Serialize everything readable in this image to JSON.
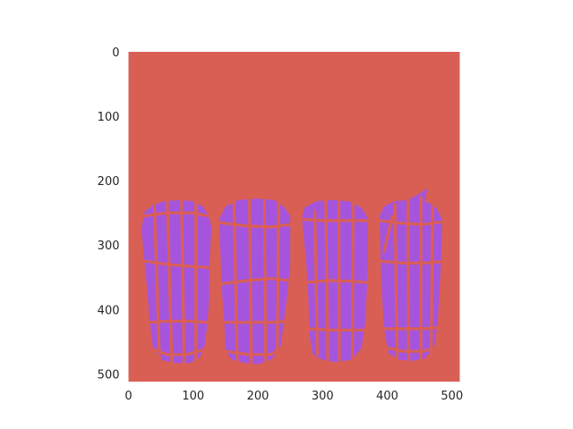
{
  "chart_data": {
    "type": "heatmap",
    "title": "",
    "xlabel": "",
    "ylabel": "",
    "xlim": [
      0,
      512
    ],
    "ylim": [
      512,
      0
    ],
    "x_ticks": [
      0,
      100,
      200,
      300,
      400,
      500
    ],
    "y_ticks": [
      0,
      100,
      200,
      300,
      400,
      500
    ],
    "x_tick_labels": [
      "0",
      "100",
      "200",
      "300",
      "400",
      "500"
    ],
    "y_tick_labels": [
      "0",
      "100",
      "200",
      "300",
      "400",
      "500"
    ],
    "grid": false,
    "colors": {
      "background": "#d95f55",
      "mask": "#a555dd",
      "seam": "#d95f55"
    },
    "regions": [
      {
        "label": "mask",
        "outline": [
          [
            20,
            275
          ],
          [
            25,
            248
          ],
          [
            38,
            238
          ],
          [
            55,
            232
          ],
          [
            80,
            230
          ],
          [
            100,
            232
          ],
          [
            115,
            240
          ],
          [
            125,
            255
          ],
          [
            128,
            275
          ],
          [
            125,
            330
          ],
          [
            125,
            380
          ],
          [
            122,
            420
          ],
          [
            118,
            455
          ],
          [
            110,
            475
          ],
          [
            95,
            483
          ],
          [
            70,
            483
          ],
          [
            50,
            478
          ],
          [
            38,
            460
          ],
          [
            33,
            420
          ],
          [
            30,
            380
          ],
          [
            25,
            330
          ]
        ],
        "seams": [
          [
            [
              22,
              255
            ],
            [
              60,
              250
            ],
            [
              100,
              250
            ],
            [
              125,
              255
            ]
          ],
          [
            [
              25,
              325
            ],
            [
              60,
              330
            ],
            [
              95,
              333
            ],
            [
              125,
              335
            ]
          ],
          [
            [
              33,
              420
            ],
            [
              60,
              418
            ],
            [
              95,
              418
            ],
            [
              122,
              420
            ]
          ],
          [
            [
              38,
              462
            ],
            [
              60,
              470
            ],
            [
              90,
              470
            ],
            [
              118,
              462
            ]
          ],
          [
            [
              40,
              240
            ],
            [
              48,
              480
            ]
          ],
          [
            [
              60,
              232
            ],
            [
              67,
              483
            ]
          ],
          [
            [
              82,
              230
            ],
            [
              86,
              483
            ]
          ],
          [
            [
              104,
              232
            ],
            [
              104,
              482
            ]
          ]
        ]
      },
      {
        "label": "mask",
        "outline": [
          [
            140,
            260
          ],
          [
            150,
            240
          ],
          [
            170,
            230
          ],
          [
            200,
            228
          ],
          [
            225,
            230
          ],
          [
            240,
            240
          ],
          [
            250,
            255
          ],
          [
            250,
            330
          ],
          [
            245,
            380
          ],
          [
            240,
            420
          ],
          [
            235,
            460
          ],
          [
            220,
            478
          ],
          [
            200,
            485
          ],
          [
            180,
            483
          ],
          [
            160,
            478
          ],
          [
            150,
            465
          ],
          [
            148,
            420
          ],
          [
            145,
            380
          ],
          [
            143,
            330
          ]
        ],
        "seams": [
          [
            [
              140,
              265
            ],
            [
              180,
              270
            ],
            [
              220,
              272
            ],
            [
              250,
              268
            ]
          ],
          [
            [
              144,
              360
            ],
            [
              185,
              355
            ],
            [
              220,
              352
            ],
            [
              248,
              355
            ]
          ],
          [
            [
              146,
              420
            ],
            [
              185,
              420
            ],
            [
              220,
              420
            ],
            [
              242,
              418
            ]
          ],
          [
            [
              150,
              465
            ],
            [
              185,
              470
            ],
            [
              220,
              470
            ],
            [
              236,
              460
            ]
          ],
          [
            [
              163,
              232
            ],
            [
              168,
              480
            ]
          ],
          [
            [
              187,
              228
            ],
            [
              190,
              485
            ]
          ],
          [
            [
              210,
              228
            ],
            [
              212,
              482
            ]
          ],
          [
            [
              232,
              233
            ],
            [
              230,
              475
            ]
          ]
        ]
      },
      {
        "label": "mask",
        "outline": [
          [
            268,
            258
          ],
          [
            272,
            242
          ],
          [
            290,
            232
          ],
          [
            315,
            230
          ],
          [
            340,
            232
          ],
          [
            360,
            242
          ],
          [
            370,
            258
          ],
          [
            370,
            330
          ],
          [
            368,
            380
          ],
          [
            366,
            420
          ],
          [
            360,
            460
          ],
          [
            345,
            478
          ],
          [
            320,
            482
          ],
          [
            300,
            478
          ],
          [
            285,
            470
          ],
          [
            280,
            440
          ],
          [
            278,
            380
          ],
          [
            275,
            330
          ]
        ],
        "seams": [
          [
            [
              268,
              260
            ],
            [
              300,
              262
            ],
            [
              340,
              262
            ],
            [
              370,
              262
            ]
          ],
          [
            [
              274,
              358
            ],
            [
              310,
              355
            ],
            [
              345,
              356
            ],
            [
              368,
              358
            ]
          ],
          [
            [
              279,
              430
            ],
            [
              310,
              432
            ],
            [
              345,
              432
            ],
            [
              366,
              432
            ]
          ],
          [
            [
              288,
              247
            ],
            [
              292,
              470
            ]
          ],
          [
            [
              305,
              232
            ],
            [
              308,
              478
            ]
          ],
          [
            [
              325,
              230
            ],
            [
              326,
              482
            ]
          ],
          [
            [
              347,
              234
            ],
            [
              346,
              475
            ]
          ]
        ]
      },
      {
        "label": "mask",
        "outline": [
          [
            388,
            255
          ],
          [
            395,
            240
          ],
          [
            410,
            232
          ],
          [
            432,
            230
          ],
          [
            450,
            220
          ],
          [
            462,
            212
          ],
          [
            458,
            232
          ],
          [
            475,
            240
          ],
          [
            485,
            260
          ],
          [
            483,
            330
          ],
          [
            480,
            380
          ],
          [
            478,
            420
          ],
          [
            472,
            460
          ],
          [
            458,
            476
          ],
          [
            438,
            480
          ],
          [
            418,
            478
          ],
          [
            402,
            468
          ],
          [
            395,
            430
          ],
          [
            392,
            380
          ],
          [
            390,
            330
          ]
        ],
        "seams": [
          [
            [
              388,
              262
            ],
            [
              420,
              266
            ],
            [
              455,
              268
            ],
            [
              485,
              264
            ]
          ],
          [
            [
              390,
              325
            ],
            [
              425,
              328
            ],
            [
              455,
              328
            ],
            [
              483,
              326
            ]
          ],
          [
            [
              395,
              430
            ],
            [
              425,
              430
            ],
            [
              455,
              430
            ],
            [
              478,
              428
            ]
          ],
          [
            [
              402,
              460
            ],
            [
              425,
              465
            ],
            [
              455,
              465
            ],
            [
              472,
              460
            ]
          ],
          [
            [
              395,
              310
            ],
            [
              408,
              255
            ]
          ],
          [
            [
              412,
              236
            ],
            [
              415,
              475
            ]
          ],
          [
            [
              432,
              230
            ],
            [
              433,
              480
            ]
          ],
          [
            [
              452,
              226
            ],
            [
              452,
              478
            ]
          ],
          [
            [
              470,
              240
            ],
            [
              468,
              465
            ]
          ]
        ]
      }
    ]
  }
}
